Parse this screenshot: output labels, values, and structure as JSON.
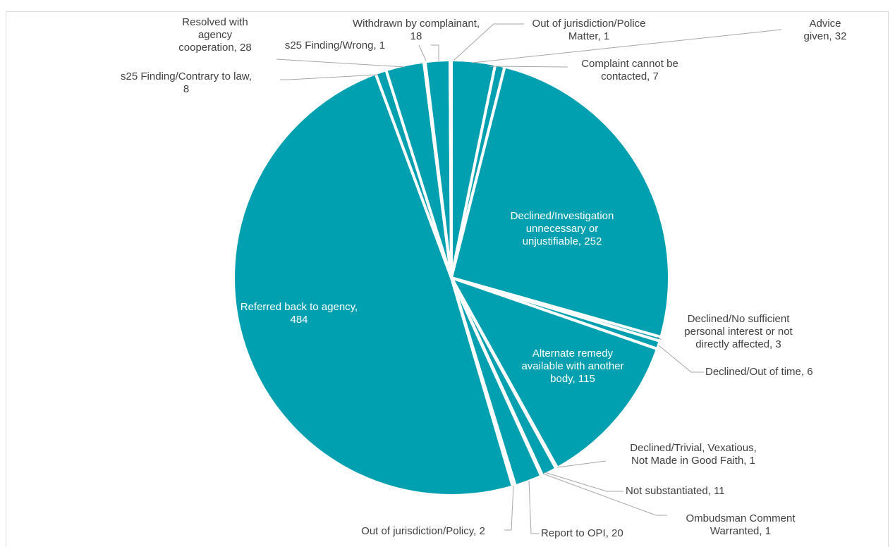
{
  "chart_data": {
    "type": "pie",
    "title": "",
    "color": "#00a0b0",
    "slices": [
      {
        "label": "Advice given",
        "value": 32
      },
      {
        "label": "Complaint cannot be contacted",
        "value": 7
      },
      {
        "label": "Declined/Investigation unnecessary or unjustifiable",
        "value": 252
      },
      {
        "label": "Declined/No sufficient personal interest or not directly affected",
        "value": 3
      },
      {
        "label": "Declined/Out of time",
        "value": 6
      },
      {
        "label": "Alternate remedy available with another body",
        "value": 115
      },
      {
        "label": "Declined/Trivial, Vexatious, Not Made in Good Faith",
        "value": 1
      },
      {
        "label": "Not substantiated",
        "value": 11
      },
      {
        "label": "Ombudsman Comment Warranted",
        "value": 1
      },
      {
        "label": "Report to OPI",
        "value": 20
      },
      {
        "label": "Out of jurisdiction/Policy",
        "value": 2
      },
      {
        "label": "Referred back to agency",
        "value": 484
      },
      {
        "label": "s25 Finding/Contrary to law",
        "value": 8
      },
      {
        "label": "Resolved with agency cooperation",
        "value": 28
      },
      {
        "label": "s25 Finding/Wrong",
        "value": 1
      },
      {
        "label": "Withdrawn by complainant",
        "value": 18
      },
      {
        "label": "Out of jurisdiction/Police Matter",
        "value": 1
      }
    ],
    "data_labels": [
      {
        "lines": [
          "Advice",
          "given, 32"
        ]
      },
      {
        "lines": [
          "Complaint cannot be",
          "contacted, 7"
        ]
      },
      {
        "lines": [
          "Declined/Investigation",
          "unnecessary or",
          "unjustifiable, 252"
        ]
      },
      {
        "lines": [
          "Declined/No sufficient",
          "personal interest or not",
          "directly affected, 3"
        ]
      },
      {
        "lines": [
          "Declined/Out of time, 6"
        ]
      },
      {
        "lines": [
          "Alternate remedy",
          "available with another",
          "body, 115"
        ]
      },
      {
        "lines": [
          "Declined/Trivial, Vexatious,",
          "Not Made in Good Faith, 1"
        ]
      },
      {
        "lines": [
          "Not substantiated, 11"
        ]
      },
      {
        "lines": [
          "Ombudsman Comment",
          "Warranted, 1"
        ]
      },
      {
        "lines": [
          "Report to OPI, 20"
        ]
      },
      {
        "lines": [
          "Out of jurisdiction/Policy, 2"
        ]
      },
      {
        "lines": [
          "Referred back to agency,",
          "484"
        ]
      },
      {
        "lines": [
          "s25 Finding/Contrary to law,",
          "8"
        ]
      },
      {
        "lines": [
          "Resolved with",
          "agency",
          "cooperation, 28"
        ]
      },
      {
        "lines": [
          "s25 Finding/Wrong, 1"
        ]
      },
      {
        "lines": [
          "Withdrawn by complainant,",
          "18"
        ]
      },
      {
        "lines": [
          "Out of jurisdiction/Police",
          "Matter, 1"
        ]
      }
    ]
  }
}
